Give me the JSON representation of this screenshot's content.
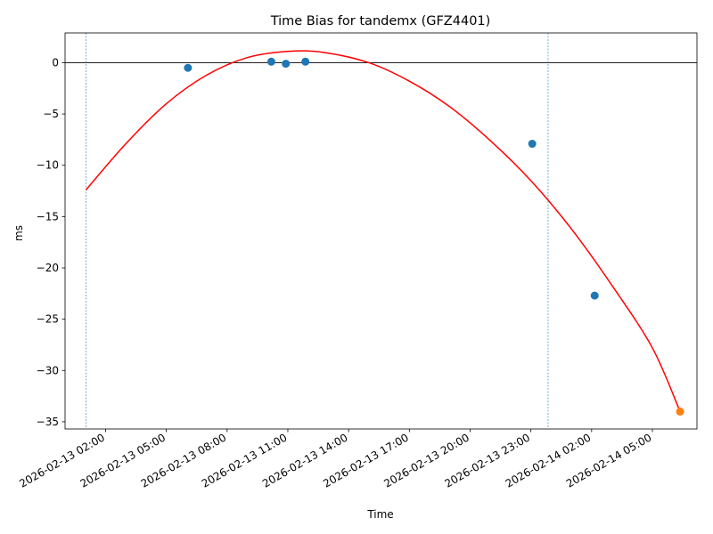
{
  "chart_data": {
    "type": "scatter",
    "title": "Time Bias for tandemx (GFZ4401)",
    "xlabel": "Time",
    "ylabel": "ms",
    "x_axis": "datetime",
    "xlim": [
      "2026-02-13 00:00",
      "2026-02-14 07:12"
    ],
    "ylim": [
      -35.7,
      2.9
    ],
    "y_ticks": [
      0,
      -5,
      -10,
      -15,
      -20,
      -25,
      -30,
      -35
    ],
    "y_tick_labels": [
      "0",
      "−5",
      "−10",
      "−15",
      "−20",
      "−25",
      "−30",
      "−35"
    ],
    "x_ticks": [
      "2026-02-13 02:00",
      "2026-02-13 05:00",
      "2026-02-13 08:00",
      "2026-02-13 11:00",
      "2026-02-13 14:00",
      "2026-02-13 17:00",
      "2026-02-13 20:00",
      "2026-02-13 23:00",
      "2026-02-14 02:00",
      "2026-02-14 05:00"
    ],
    "x_tick_labels": [
      "2026-02-13 02:00",
      "2026-02-13 05:00",
      "2026-02-13 08:00",
      "2026-02-13 11:00",
      "2026-02-13 14:00",
      "2026-02-13 17:00",
      "2026-02-13 20:00",
      "2026-02-13 23:00",
      "2026-02-14 02:00",
      "2026-02-14 05:00"
    ],
    "grid": false,
    "zero_line": 0,
    "vertical_lines": [
      "2026-02-13 01:02",
      "2026-02-13 23:51"
    ],
    "series": [
      {
        "kind": "scatter",
        "color": "#1f77b4",
        "points": [
          {
            "x": "2026-02-13 06:04",
            "y": -0.5
          },
          {
            "x": "2026-02-13 10:11",
            "y": 0.1
          },
          {
            "x": "2026-02-13 10:54",
            "y": -0.1
          },
          {
            "x": "2026-02-13 11:52",
            "y": 0.1
          },
          {
            "x": "2026-02-13 23:04",
            "y": -7.9
          },
          {
            "x": "2026-02-14 02:09",
            "y": -22.7
          }
        ]
      },
      {
        "kind": "scatter",
        "color": "#ff7f0e",
        "points": [
          {
            "x": "2026-02-14 06:22",
            "y": -34.0
          }
        ]
      },
      {
        "kind": "curve",
        "color": "#ff0000",
        "points": [
          {
            "x": "2026-02-13 01:02",
            "y": -12.4
          },
          {
            "x": "2026-02-13 03:00",
            "y": -7.9
          },
          {
            "x": "2026-02-13 05:00",
            "y": -4.0
          },
          {
            "x": "2026-02-13 07:00",
            "y": -1.2
          },
          {
            "x": "2026-02-13 09:00",
            "y": 0.5
          },
          {
            "x": "2026-02-13 11:00",
            "y": 1.1
          },
          {
            "x": "2026-02-13 12:45",
            "y": 1.0
          },
          {
            "x": "2026-02-13 15:00",
            "y": 0.0
          },
          {
            "x": "2026-02-13 17:00",
            "y": -1.8
          },
          {
            "x": "2026-02-13 19:00",
            "y": -4.3
          },
          {
            "x": "2026-02-13 21:00",
            "y": -7.6
          },
          {
            "x": "2026-02-13 23:00",
            "y": -11.5
          },
          {
            "x": "2026-02-14 01:00",
            "y": -16.2
          },
          {
            "x": "2026-02-14 03:00",
            "y": -21.7
          },
          {
            "x": "2026-02-14 05:00",
            "y": -27.8
          },
          {
            "x": "2026-02-14 06:22",
            "y": -34.0
          }
        ]
      }
    ]
  }
}
